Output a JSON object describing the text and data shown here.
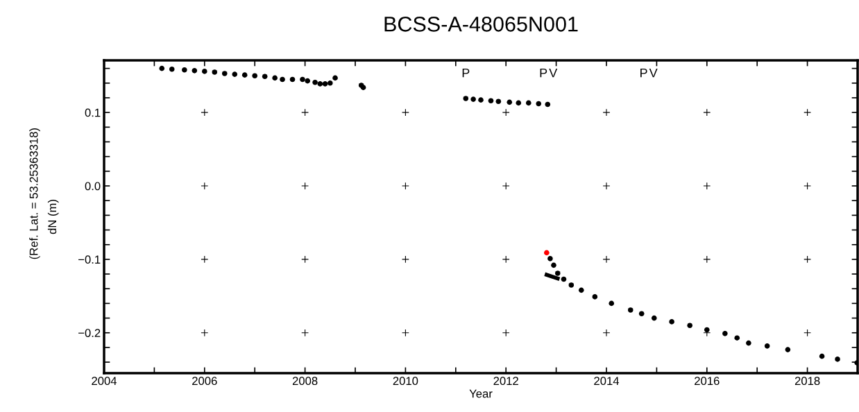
{
  "chart_data": {
    "type": "scatter",
    "title": "BCSS-A-48065N001",
    "xlabel": "Year",
    "ylabel": "dN (m)",
    "annotations": [
      "(Ref. Lat. = 53.25363318)",
      "P",
      "P",
      "V",
      "P",
      "V"
    ],
    "series": [
      {
        "color": "#000000",
        "x": [
          2005.15,
          2005.35,
          2005.6,
          2005.8,
          2006.0,
          2006.2,
          2006.4,
          2006.6,
          2006.8,
          2007.0,
          2007.2,
          2007.4,
          2007.55,
          2007.75,
          2007.95,
          2008.05,
          2008.2,
          2008.3,
          2008.4,
          2008.5,
          2008.6,
          2009.12,
          2009.16,
          2011.2,
          2011.35,
          2011.5,
          2011.7,
          2011.85,
          2012.07,
          2012.25,
          2012.45,
          2012.65,
          2012.83,
          2012.88,
          2012.95,
          2013.03,
          2013.15,
          2013.3,
          2013.5,
          2013.77,
          2014.1,
          2014.48,
          2014.7,
          2014.95,
          2015.3,
          2015.66,
          2016.0,
          2016.36,
          2016.6,
          2016.83,
          2017.2,
          2017.61,
          2018.29,
          2018.6,
          2018.99
        ],
        "values": [
          0.16,
          0.159,
          0.158,
          0.157,
          0.156,
          0.155,
          0.153,
          0.152,
          0.151,
          0.15,
          0.149,
          0.147,
          0.145,
          0.145,
          0.145,
          0.143,
          0.141,
          0.139,
          0.139,
          0.14,
          0.147,
          0.137,
          0.134,
          0.119,
          0.118,
          0.117,
          0.116,
          0.115,
          0.114,
          0.113,
          0.113,
          0.112,
          0.111,
          -0.099,
          -0.108,
          -0.119,
          -0.127,
          -0.135,
          -0.142,
          -0.151,
          -0.16,
          -0.169,
          -0.174,
          -0.18,
          -0.185,
          -0.19,
          -0.196,
          -0.201,
          -0.207,
          -0.214,
          -0.218,
          -0.223,
          -0.232,
          -0.236,
          -0.241
        ]
      },
      {
        "color": "#ff0000",
        "x": [
          2012.81
        ],
        "values": [
          -0.091
        ]
      },
      {
        "type": "line",
        "marker": "none",
        "color": "#000000",
        "x": [
          2012.81,
          2013.03
        ],
        "values": [
          -0.121,
          -0.126
        ]
      }
    ],
    "marker": "circle",
    "xlim": [
      2004.0,
      2019.0
    ],
    "ylim": [
      -0.255,
      0.171
    ],
    "xticks": [
      {
        "value": 2004,
        "label": "2004"
      },
      {
        "value": 2005,
        "label": null
      },
      {
        "value": 2006,
        "label": "2006"
      },
      {
        "value": 2007,
        "label": null
      },
      {
        "value": 2008,
        "label": "2008"
      },
      {
        "value": 2009,
        "label": null
      },
      {
        "value": 2010,
        "label": "2010"
      },
      {
        "value": 2011,
        "label": null
      },
      {
        "value": 2012,
        "label": "2012"
      },
      {
        "value": 2013,
        "label": null
      },
      {
        "value": 2014,
        "label": "2014"
      },
      {
        "value": 2015,
        "label": null
      },
      {
        "value": 2016,
        "label": "2016"
      },
      {
        "value": 2017,
        "label": null
      },
      {
        "value": 2018,
        "label": "2018"
      }
    ],
    "yticks": [
      {
        "value": -0.24,
        "label": null
      },
      {
        "value": -0.22,
        "label": null
      },
      {
        "value": -0.2,
        "label": "−0.2"
      },
      {
        "value": -0.18,
        "label": null
      },
      {
        "value": -0.16,
        "label": null
      },
      {
        "value": -0.14,
        "label": null
      },
      {
        "value": -0.12,
        "label": null
      },
      {
        "value": -0.1,
        "label": "−0.1"
      },
      {
        "value": -0.08,
        "label": null
      },
      {
        "value": -0.06,
        "label": null
      },
      {
        "value": -0.04,
        "label": null
      },
      {
        "value": -0.02,
        "label": null
      },
      {
        "value": 0.0,
        "label": "0.0"
      },
      {
        "value": 0.02,
        "label": null
      },
      {
        "value": 0.04,
        "label": null
      },
      {
        "value": 0.06,
        "label": null
      },
      {
        "value": 0.08,
        "label": null
      },
      {
        "value": 0.1,
        "label": "0.1"
      },
      {
        "value": 0.12,
        "label": null
      },
      {
        "value": 0.14,
        "label": null
      },
      {
        "value": 0.16,
        "label": null
      }
    ]
  }
}
